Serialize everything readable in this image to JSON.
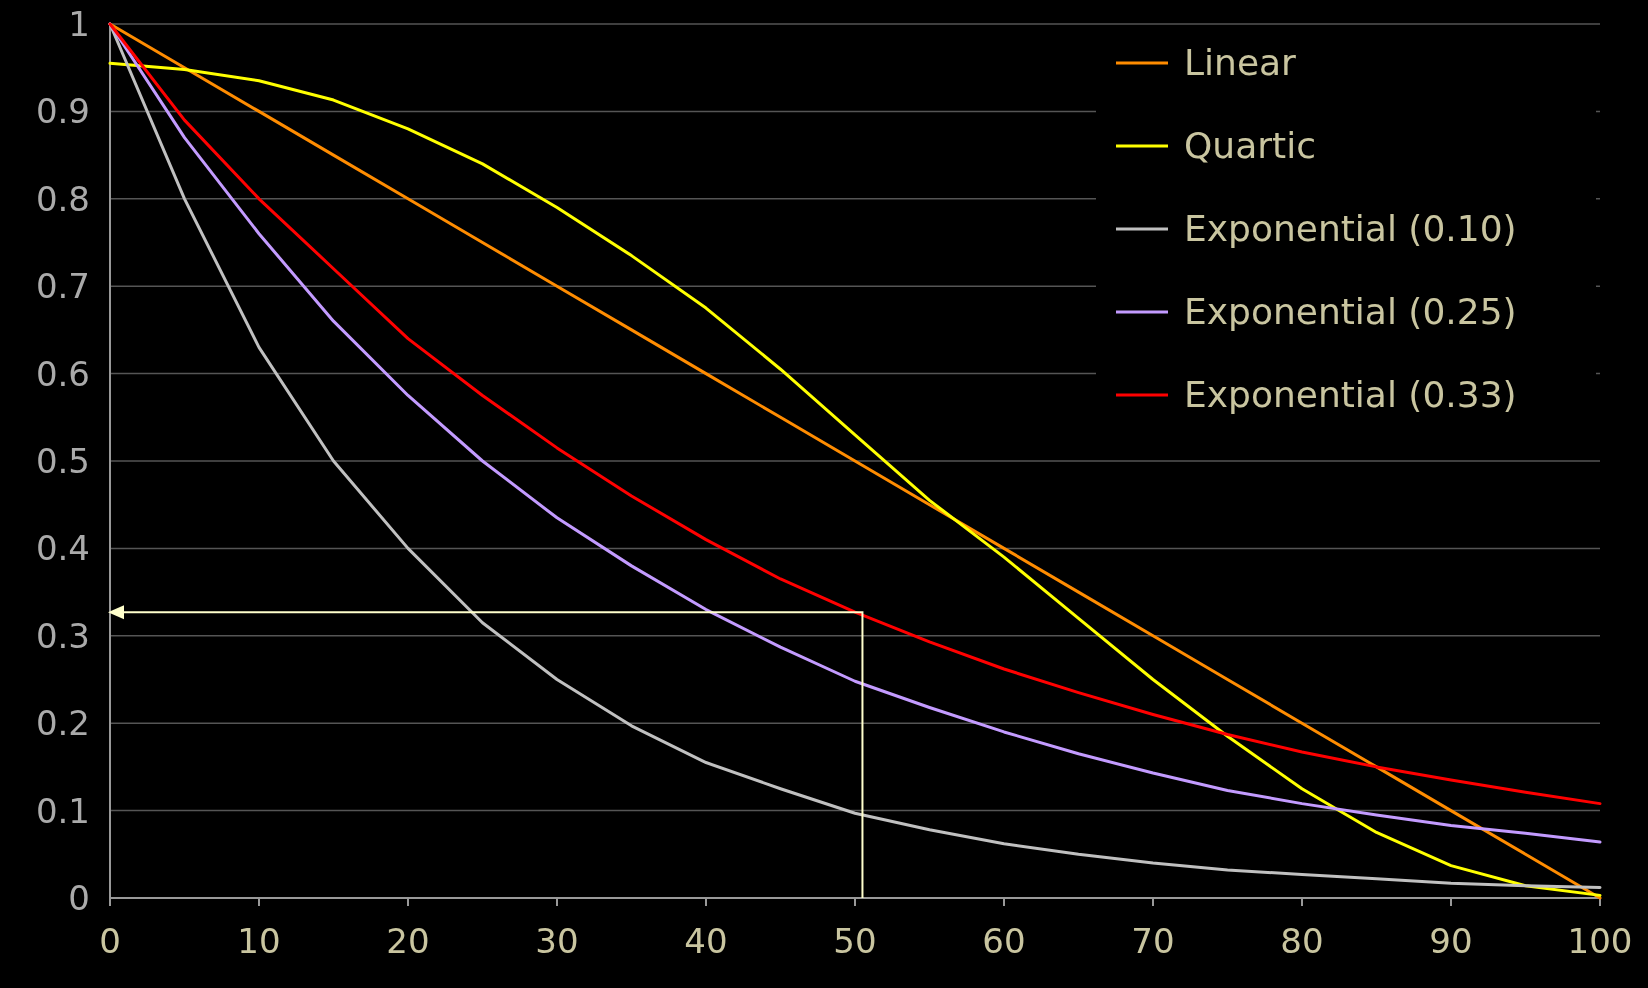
{
  "chart_data": {
    "type": "line",
    "x": [
      0,
      5,
      10,
      15,
      20,
      25,
      30,
      35,
      40,
      45,
      50,
      55,
      60,
      65,
      70,
      75,
      80,
      85,
      90,
      95,
      100
    ],
    "series": [
      {
        "name": "Linear",
        "color": "#ff8c00",
        "values": [
          1,
          0.95,
          0.9,
          0.85,
          0.8,
          0.75,
          0.7,
          0.65,
          0.6,
          0.55,
          0.5,
          0.45,
          0.4,
          0.35,
          0.3,
          0.25,
          0.2,
          0.15,
          0.1,
          0.05,
          0
        ]
      },
      {
        "name": "Quartic",
        "color": "#ffff00",
        "values": [
          0.955,
          0.948,
          0.935,
          0.913,
          0.88,
          0.84,
          0.79,
          0.735,
          0.675,
          0.605,
          0.53,
          0.455,
          0.39,
          0.32,
          0.25,
          0.185,
          0.125,
          0.075,
          0.037,
          0.014,
          0.003
        ]
      },
      {
        "name": "Exponential (0.10)",
        "color": "#c0c0c0",
        "values": [
          1,
          0.8,
          0.63,
          0.5,
          0.4,
          0.315,
          0.25,
          0.197,
          0.155,
          0.125,
          0.097,
          0.078,
          0.062,
          0.05,
          0.04,
          0.032,
          0.027,
          0.022,
          0.017,
          0.014,
          0.012
        ]
      },
      {
        "name": "Exponential (0.25)",
        "color": "#c39bff",
        "values": [
          1,
          0.87,
          0.76,
          0.66,
          0.575,
          0.5,
          0.435,
          0.38,
          0.33,
          0.287,
          0.248,
          0.218,
          0.19,
          0.165,
          0.143,
          0.123,
          0.108,
          0.095,
          0.083,
          0.074,
          0.064
        ]
      },
      {
        "name": "Exponential (0.33)",
        "color": "#ff0000",
        "values": [
          1,
          0.89,
          0.8,
          0.72,
          0.64,
          0.575,
          0.515,
          0.46,
          0.41,
          0.365,
          0.327,
          0.293,
          0.262,
          0.235,
          0.21,
          0.187,
          0.167,
          0.15,
          0.135,
          0.121,
          0.108
        ]
      }
    ],
    "xlim": [
      0,
      100
    ],
    "xticks": [
      0,
      10,
      20,
      30,
      40,
      50,
      60,
      70,
      80,
      90,
      100
    ],
    "ylim": [
      0,
      1
    ],
    "yticks": [
      0,
      0.1,
      0.2,
      0.3,
      0.4,
      0.5,
      0.6,
      0.7,
      0.8,
      0.9,
      1
    ],
    "grid": "y",
    "legend": "top right",
    "marker": "none",
    "line_style": "solid"
  }
}
